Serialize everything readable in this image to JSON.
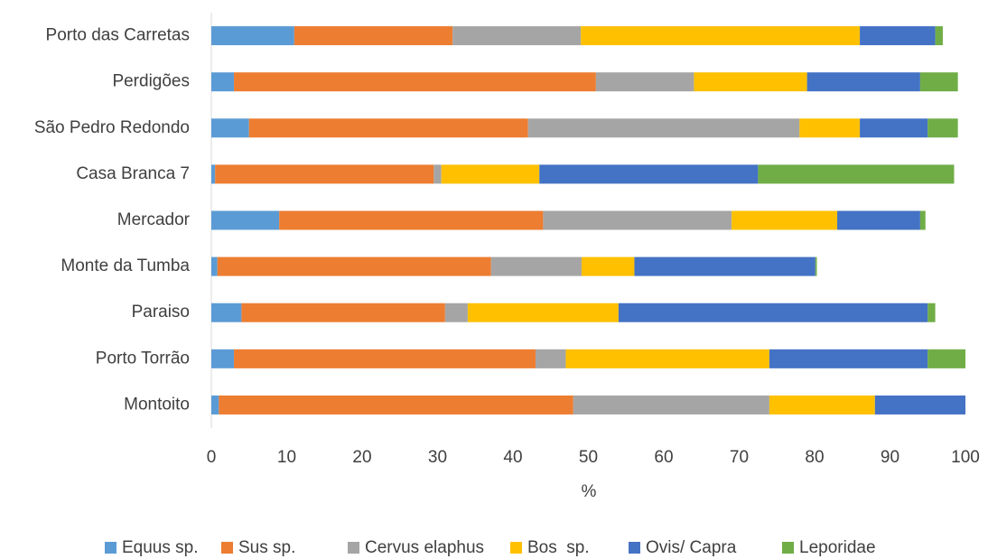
{
  "chart_data": {
    "type": "stacked_bar_horizontal",
    "categories": [
      "Porto das Carretas",
      "Perdigões",
      "São Pedro Redondo",
      "Casa Branca 7",
      "Mercador",
      "Monte da Tumba",
      "Paraiso",
      "Porto Torrão",
      "Montoito"
    ],
    "series": [
      {
        "name": "Equus sp.",
        "color": "#5b9bd5",
        "values": [
          11,
          3,
          5,
          0.5,
          9,
          0.8,
          4,
          3,
          1
        ]
      },
      {
        "name": "Sus sp.",
        "color": "#ed7d31",
        "values": [
          21,
          48,
          37,
          29,
          35,
          36.3,
          27,
          40,
          47
        ]
      },
      {
        "name": "Cervus elaphus",
        "color": "#a5a5a5",
        "values": [
          17,
          13,
          36,
          1,
          25,
          12,
          3,
          4,
          26
        ]
      },
      {
        "name": "Bos  sp.",
        "color": "#ffc000",
        "values": [
          37,
          15,
          8,
          13,
          14,
          7,
          20,
          27,
          14
        ]
      },
      {
        "name": "Ovis/ Capra",
        "color": "#4472c4",
        "values": [
          10,
          15,
          9,
          29,
          11,
          24,
          41,
          21,
          12
        ]
      },
      {
        "name": "Leporidae",
        "color": "#70ad47",
        "values": [
          1,
          5,
          4,
          26,
          0.7,
          0.2,
          1,
          5,
          0
        ]
      }
    ],
    "xlabel": "%",
    "xlim": [
      0,
      100
    ],
    "xticks": [
      0,
      10,
      20,
      30,
      40,
      50,
      60,
      70,
      80,
      90,
      100
    ],
    "legend": "bottom"
  }
}
